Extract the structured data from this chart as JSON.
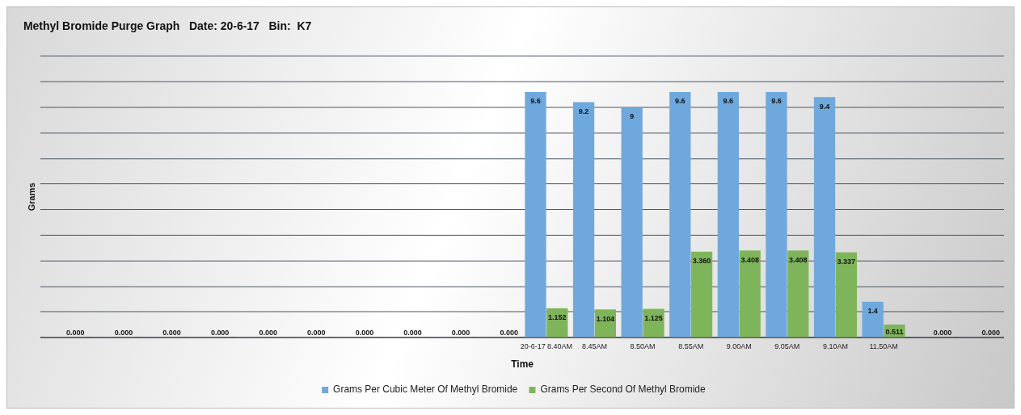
{
  "chart_data": {
    "type": "bar",
    "title": "Methyl Bromide Purge Graph   Date: 20-6-17   Bin:  K7",
    "xlabel": "Time",
    "ylabel": "Grams",
    "categories": [
      null,
      null,
      null,
      null,
      null,
      null,
      null,
      null,
      null,
      null,
      "20-6-17 8.40AM",
      "8.45AM",
      "8.50AM",
      "8.55AM",
      "9.00AM",
      "9.05AM",
      "9.10AM",
      "11.50AM",
      null,
      null
    ],
    "series": [
      {
        "name": "Grams Per Cubic Meter Of Methyl Bromide",
        "color": "#6fa8dc",
        "values": [
          0,
          0,
          0,
          0,
          0,
          0,
          0,
          0,
          0,
          0,
          9.6,
          9.2,
          9,
          9.6,
          9.6,
          9.6,
          9.4,
          1.4,
          0,
          0
        ],
        "value_labels": [
          null,
          null,
          null,
          null,
          null,
          null,
          null,
          null,
          null,
          null,
          "9.6",
          "9.2",
          "9",
          "9.6",
          "9.6",
          "9.6",
          "9.4",
          "1.4",
          null,
          null
        ]
      },
      {
        "name": "Grams Per Second Of Methyl Bromide",
        "color": "#7fb55a",
        "values": [
          0,
          0,
          0,
          0,
          0,
          0,
          0,
          0,
          0,
          0,
          1.152,
          1.104,
          1.125,
          3.36,
          3.408,
          3.408,
          3.337,
          0.511,
          0,
          0
        ],
        "value_labels": [
          "0.000",
          "0.000",
          "0.000",
          "0.000",
          "0.000",
          "0.000",
          "0.000",
          "0.000",
          "0.000",
          "0.000",
          "1.152",
          "1.104",
          "1.125",
          "3.360",
          "3.408",
          "3.408",
          "3.337",
          "0.511",
          "0.000",
          "0.000"
        ]
      }
    ],
    "ylim": [
      0,
      11
    ],
    "yticks": [
      {
        "value": 0,
        "label": null
      },
      {
        "value": 1,
        "label": null
      },
      {
        "value": 2,
        "label": null
      },
      {
        "value": 3,
        "label": null
      },
      {
        "value": 4,
        "label": null
      },
      {
        "value": 5,
        "label": null
      },
      {
        "value": 6,
        "label": null
      },
      {
        "value": 7,
        "label": null
      },
      {
        "value": 8,
        "label": null
      },
      {
        "value": 9,
        "label": null
      },
      {
        "value": 10,
        "label": null
      },
      {
        "value": 11,
        "label": null
      }
    ],
    "tick_labels": "x",
    "grid": "y",
    "legend": "bottom"
  }
}
